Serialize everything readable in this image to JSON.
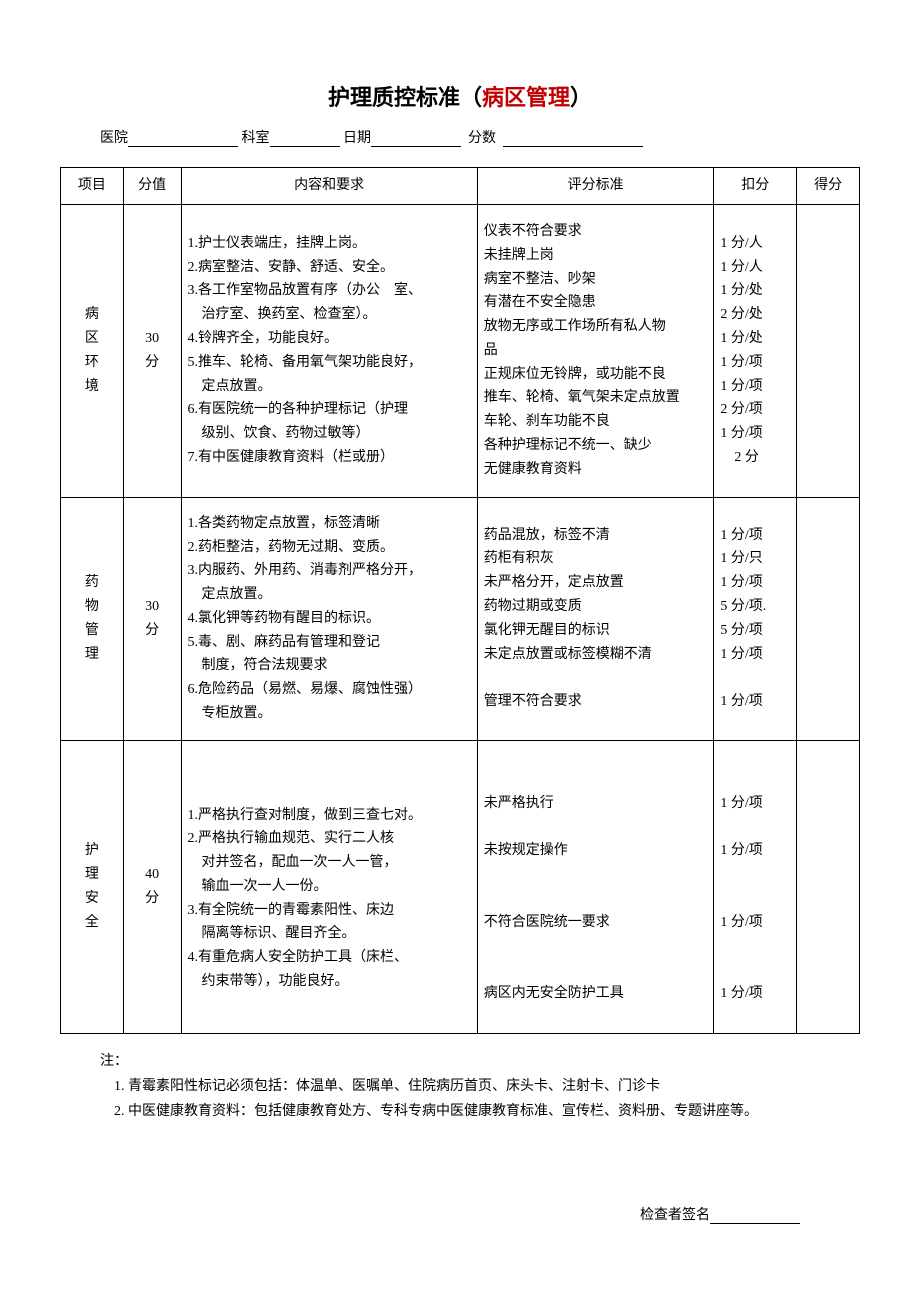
{
  "title_prefix": "护理质控标准（",
  "title_red": "病区管理",
  "title_suffix": "）",
  "form": {
    "hospital_label": "医院",
    "dept_label": "科室",
    "date_label": "日期",
    "score_label": "分数"
  },
  "headers": {
    "item": "项目",
    "value": "分值",
    "content": "内容和要求",
    "criteria": "评分标准",
    "deduct": "扣分",
    "result": "得分"
  },
  "rows": [
    {
      "item": "病\n区\n环\n境",
      "value": "30\n分",
      "content": "1.护士仪表端庄，挂牌上岗。\n2.病室整洁、安静、舒适、安全。\n3.各工作室物品放置有序（办公　室、\n　治疗室、换药室、检查室）。\n4.铃牌齐全，功能良好。\n5.推车、轮椅、备用氧气架功能良好，\n　定点放置。\n6.有医院统一的各种护理标记（护理\n　级别、饮食、药物过敏等）\n7.有中医健康教育资料（栏或册）",
      "criteria": "仪表不符合要求\n未挂牌上岗\n病室不整洁、吵架\n有潜在不安全隐患\n放物无序或工作场所有私人物\n品\n正规床位无铃牌，或功能不良\n推车、轮椅、氧气架未定点放置\n车轮、刹车功能不良\n各种护理标记不统一、缺少\n无健康教育资料",
      "deduct": "1 分/人\n1 分/人\n1 分/处\n2 分/处\n1 分/处\n1 分/项\n1 分/项\n2 分/项\n1 分/项\n　2 分"
    },
    {
      "item": "药\n物\n管\n理",
      "value": "30\n分",
      "content": "1.各类药物定点放置，标签清晰\n2.药柜整洁，药物无过期、变质。\n3.内服药、外用药、消毒剂严格分开，\n　定点放置。\n4.氯化钾等药物有醒目的标识。\n5.毒、剧、麻药品有管理和登记\n　制度，符合法规要求\n6.危险药品（易燃、易爆、腐蚀性强）\n　专柜放置。",
      "criteria": "药品混放，标签不清\n药柜有积灰\n未严格分开，定点放置\n药物过期或变质\n氯化钾无醒目的标识\n未定点放置或标签模糊不清\n\n管理不符合要求",
      "deduct": "1 分/项\n1 分/只\n1 分/项\n5 分/项.\n5 分/项\n1 分/项\n\n1 分/项"
    },
    {
      "item": "护\n理\n安\n全",
      "value": "40\n分",
      "content": "\n1.严格执行查对制度，做到三查七对。\n2.严格执行输血规范、实行二人核\n　对并签名，配血一次一人一管，\n　输血一次一人一份。\n3.有全院统一的青霉素阳性、床边\n　隔离等标识、醒目齐全。\n4.有重危病人安全防护工具（床栏、\n　约束带等），功能良好。",
      "criteria": "\n未严格执行\n\n未按规定操作\n\n\n不符合医院统一要求\n\n\n病区内无安全防护工具",
      "deduct": "\n1 分/项\n\n1 分/项\n\n\n1 分/项\n\n\n1 分/项"
    }
  ],
  "notes_label": "注：",
  "notes": [
    "青霉素阳性标记必须包括：体温单、医嘱单、住院病历首页、床头卡、注射卡、门诊卡",
    "中医健康教育资料：包括健康教育处方、专科专病中医健康教育标准、宣传栏、资料册、专题讲座等。"
  ],
  "signature_label": "检查者签名"
}
